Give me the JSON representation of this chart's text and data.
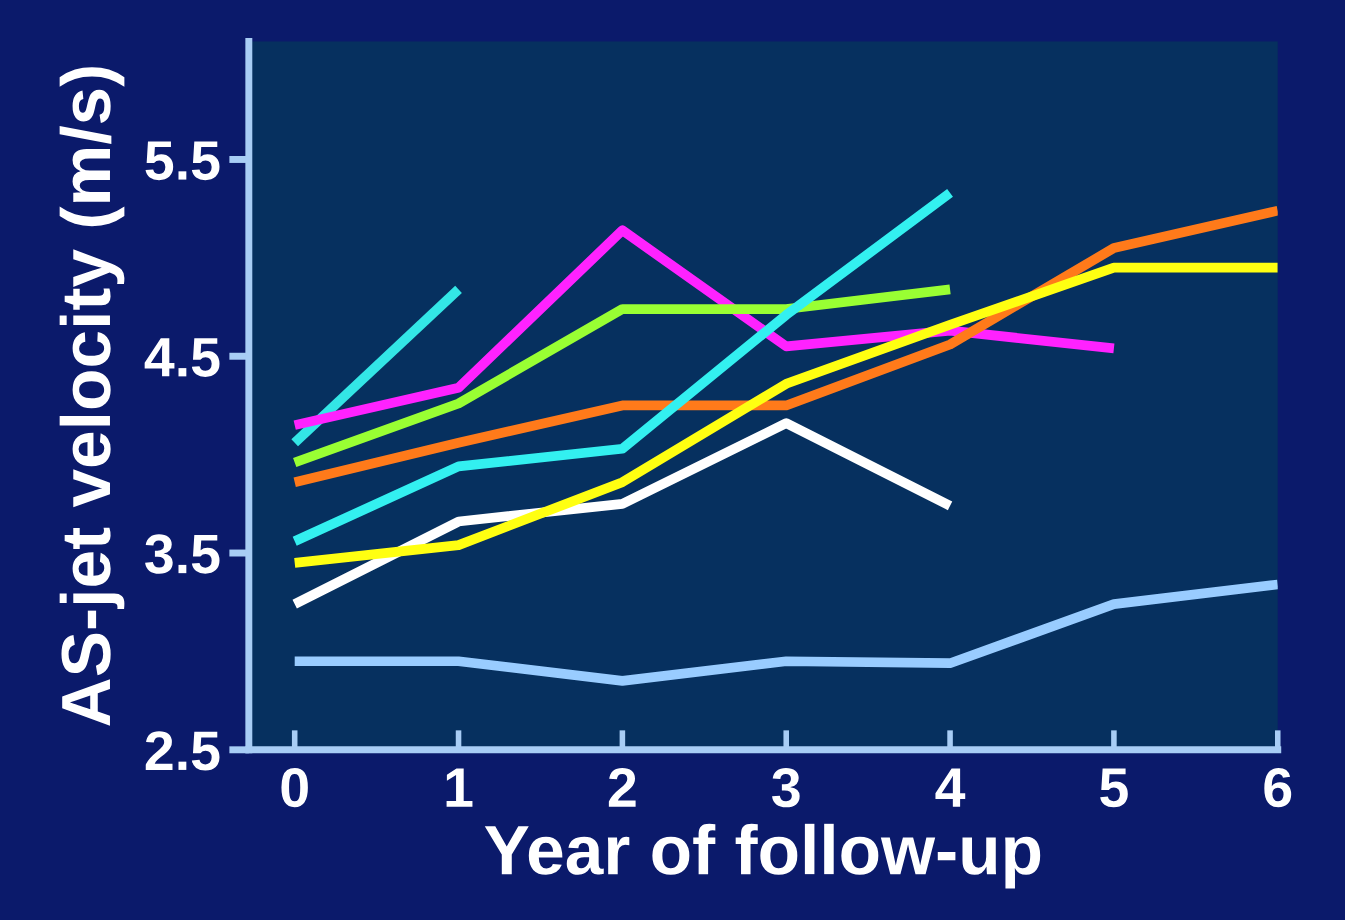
{
  "chart_data": {
    "type": "line",
    "xlabel": "Year of follow-up",
    "ylabel": "AS-jet velocity (m/s)",
    "xlim": [
      -0.28,
      6.0
    ],
    "ylim": [
      2.5,
      6.1
    ],
    "xticks": [
      0,
      1,
      2,
      3,
      4,
      5,
      6
    ],
    "yticks": [
      2.5,
      3.5,
      4.5,
      5.5
    ],
    "grid": false,
    "legend": false,
    "marker": "none",
    "line_style": "solid",
    "series": [
      {
        "color": "#33e6e6",
        "x": [
          0,
          1
        ],
        "values": [
          4.06,
          4.84
        ]
      },
      {
        "color": "#ff22ff",
        "x": [
          0,
          1,
          2,
          3,
          4,
          5
        ],
        "values": [
          4.15,
          4.34,
          5.14,
          4.55,
          4.63,
          4.54
        ]
      },
      {
        "color": "#99ff33",
        "x": [
          0,
          1,
          2,
          3,
          4
        ],
        "values": [
          3.96,
          4.26,
          4.74,
          4.74,
          4.84
        ]
      },
      {
        "color": "#ff7a1a",
        "x": [
          0,
          1,
          2,
          3,
          4,
          5,
          6
        ],
        "values": [
          3.86,
          4.06,
          4.25,
          4.25,
          4.56,
          5.05,
          5.24
        ]
      },
      {
        "color": "#33f0f0",
        "x": [
          0,
          1,
          2,
          3,
          4
        ],
        "values": [
          3.56,
          3.94,
          4.03,
          4.71,
          5.33
        ]
      },
      {
        "color": "#ffffff",
        "x": [
          0,
          1,
          2,
          3,
          4
        ],
        "values": [
          3.24,
          3.66,
          3.75,
          4.16,
          3.74
        ]
      },
      {
        "color": "#ffff11",
        "x": [
          0,
          1,
          2,
          3,
          4,
          5,
          6
        ],
        "values": [
          3.45,
          3.54,
          3.86,
          4.36,
          4.66,
          4.95,
          4.95
        ]
      },
      {
        "color": "#99ccff",
        "x": [
          0,
          1,
          2,
          3,
          4,
          5,
          6
        ],
        "values": [
          2.95,
          2.95,
          2.85,
          2.95,
          2.94,
          3.24,
          3.34
        ]
      }
    ]
  }
}
